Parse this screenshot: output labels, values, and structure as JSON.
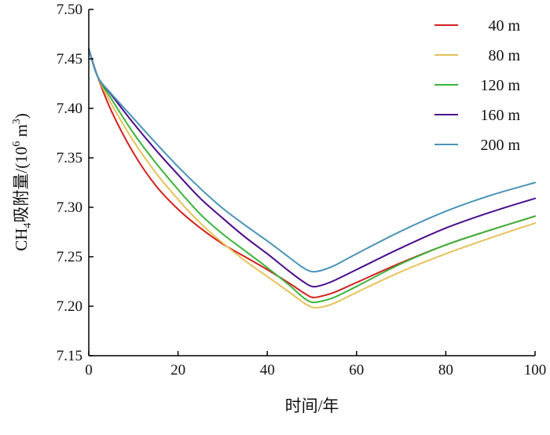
{
  "chart_data": {
    "type": "line",
    "title": "",
    "xlabel": "时间/年",
    "ylabel": {
      "prefix": "CH",
      "sub": "4",
      "mid": "吸附量/(10",
      "sup1": "6",
      "unit": " m",
      "sup2": "3",
      "suffix": ")"
    },
    "xlim": [
      0,
      100
    ],
    "ylim": [
      7.15,
      7.5
    ],
    "xticks": [
      0,
      20,
      40,
      60,
      80,
      100
    ],
    "xtick_labels": [
      "0",
      "20",
      "40",
      "60",
      "80",
      "100"
    ],
    "yticks": [
      7.15,
      7.2,
      7.25,
      7.3,
      7.35,
      7.4,
      7.45,
      7.5
    ],
    "ytick_labels": [
      "7.15",
      "7.20",
      "7.25",
      "7.30",
      "7.35",
      "7.40",
      "7.45",
      "7.50"
    ],
    "grid": false,
    "legend_position": "top-right",
    "series": [
      {
        "name": "40 m",
        "color": "#d42020",
        "x": [
          0,
          2,
          5,
          10,
          15,
          20,
          25,
          30,
          35,
          40,
          45,
          48,
          50,
          52,
          55,
          60,
          70,
          80,
          90,
          100
        ],
        "y": [
          7.46,
          7.432,
          7.398,
          7.355,
          7.322,
          7.298,
          7.279,
          7.263,
          7.25,
          7.237,
          7.223,
          7.214,
          7.209,
          7.21,
          7.214,
          7.224,
          7.244,
          7.262,
          7.277,
          7.291
        ]
      },
      {
        "name": "80 m",
        "color": "#e7c25a",
        "x": [
          0,
          2,
          5,
          10,
          15,
          20,
          25,
          30,
          35,
          40,
          45,
          48,
          50,
          52,
          55,
          60,
          70,
          80,
          90,
          100
        ],
        "y": [
          7.46,
          7.432,
          7.405,
          7.367,
          7.335,
          7.308,
          7.284,
          7.264,
          7.246,
          7.23,
          7.214,
          7.204,
          7.199,
          7.199,
          7.203,
          7.214,
          7.235,
          7.253,
          7.269,
          7.284
        ]
      },
      {
        "name": "120 m",
        "color": "#3cb43c",
        "x": [
          0,
          2,
          5,
          10,
          15,
          20,
          25,
          30,
          35,
          40,
          45,
          48,
          50,
          52,
          55,
          60,
          70,
          80,
          90,
          100
        ],
        "y": [
          7.46,
          7.432,
          7.41,
          7.375,
          7.345,
          7.318,
          7.293,
          7.273,
          7.256,
          7.239,
          7.221,
          7.209,
          7.204,
          7.205,
          7.209,
          7.22,
          7.243,
          7.262,
          7.277,
          7.291
        ]
      },
      {
        "name": "160 m",
        "color": "#4b0c8c",
        "x": [
          0,
          2,
          5,
          10,
          15,
          20,
          25,
          30,
          35,
          40,
          45,
          48,
          50,
          52,
          55,
          60,
          70,
          80,
          90,
          100
        ],
        "y": [
          7.46,
          7.432,
          7.414,
          7.385,
          7.358,
          7.333,
          7.309,
          7.289,
          7.27,
          7.253,
          7.235,
          7.225,
          7.22,
          7.221,
          7.226,
          7.237,
          7.259,
          7.279,
          7.295,
          7.309
        ]
      },
      {
        "name": "200 m",
        "color": "#4a94b8",
        "x": [
          0,
          2,
          5,
          10,
          15,
          20,
          25,
          30,
          35,
          40,
          45,
          48,
          50,
          52,
          55,
          60,
          70,
          80,
          90,
          100
        ],
        "y": [
          7.46,
          7.432,
          7.415,
          7.39,
          7.365,
          7.341,
          7.319,
          7.299,
          7.282,
          7.266,
          7.249,
          7.239,
          7.235,
          7.236,
          7.241,
          7.253,
          7.276,
          7.296,
          7.312,
          7.325
        ]
      }
    ]
  }
}
